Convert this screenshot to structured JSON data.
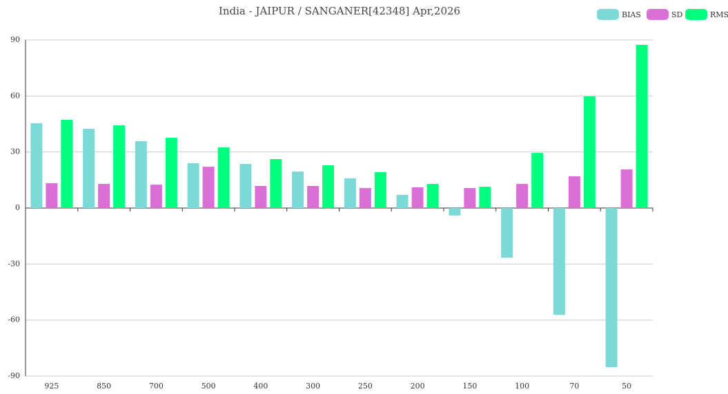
{
  "chart_data": {
    "type": "bar",
    "title": "India - JAIPUR / SANGANER[42348] Apr,2026",
    "categories": [
      "925",
      "850",
      "700",
      "500",
      "400",
      "300",
      "250",
      "200",
      "150",
      "100",
      "70",
      "50"
    ],
    "series": [
      {
        "name": "BIAS",
        "color": "#7bdad8",
        "values": [
          45.4,
          42.4,
          35.8,
          24,
          23.6,
          19.5,
          15.9,
          7,
          -4,
          -26.6,
          -57.2,
          -85.2
        ]
      },
      {
        "name": "SD",
        "color": "#da70d6",
        "values": [
          13.3,
          12.9,
          12.5,
          22.1,
          11.8,
          11.8,
          10.7,
          11.1,
          10.7,
          12.9,
          17,
          20.7
        ]
      },
      {
        "name": "RMS",
        "color": "#00ff7f",
        "values": [
          47.2,
          44.3,
          37.6,
          32.5,
          26.2,
          22.9,
          19.2,
          12.9,
          11.4,
          29.5,
          59.8,
          87.4
        ]
      }
    ],
    "ylim": [
      -90,
      90
    ],
    "yticks": [
      -90,
      -60,
      -30,
      0,
      30,
      60,
      90
    ],
    "grid": true,
    "legend": "top-right"
  }
}
